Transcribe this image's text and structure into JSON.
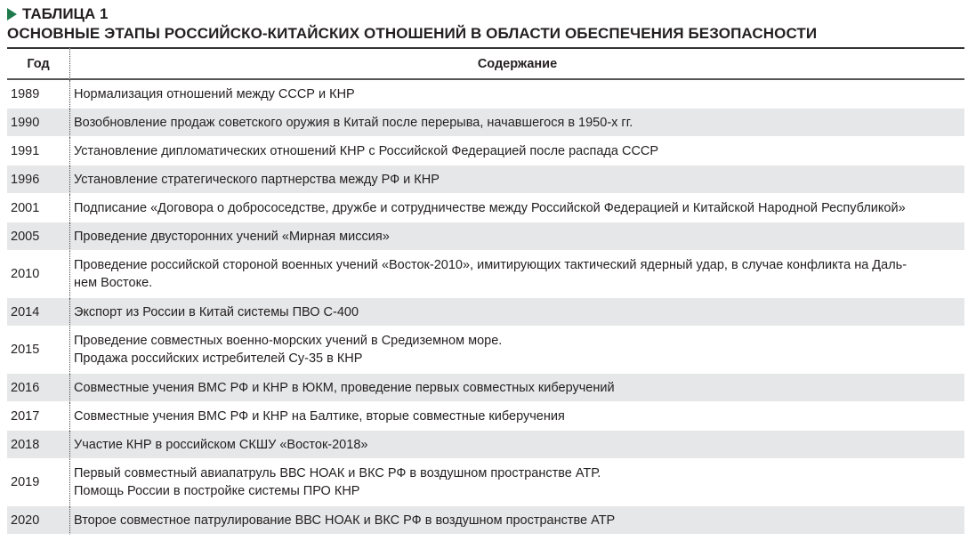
{
  "caption": {
    "label": "ТАБЛИЦА 1",
    "title": "ОСНОВНЫЕ ЭТАПЫ РОССИЙСКО-КИТАЙСКИХ ОТНОШЕНИЙ В ОБЛАСТИ ОБЕСПЕЧЕНИЯ БЕЗОПАСНОСТИ",
    "accent": "#1e7a4c"
  },
  "table": {
    "headers": [
      "Год",
      "Содержание"
    ],
    "rows": [
      {
        "year": "1989",
        "lines": [
          "Нормализация отношений между СССР и КНР"
        ]
      },
      {
        "year": "1990",
        "lines": [
          "Возобновление продаж советского оружия в Китай после перерыва, начавшегося в 1950-х гг."
        ]
      },
      {
        "year": "1991",
        "lines": [
          "Установление дипломатических отношений КНР с Российской Федерацией после распада СССР"
        ]
      },
      {
        "year": "1996",
        "lines": [
          "Установление стратегического партнерства между РФ и КНР"
        ]
      },
      {
        "year": "2001",
        "lines": [
          "Подписание «Договора о добрососедстве, дружбе и сотрудничестве между Российской Федерацией и Китайской Народной Республикой»"
        ]
      },
      {
        "year": "2005",
        "lines": [
          "Проведение двусторонних учений «Мирная миссия»"
        ]
      },
      {
        "year": "2010",
        "lines": [
          "Проведение российской стороной военных учений «Восток-2010», имитирующих тактический ядерный удар, в случае конфликта на Даль-",
          "нем Востоке."
        ]
      },
      {
        "year": "2014",
        "lines": [
          "Экспорт из России в Китай системы ПВО С-400"
        ]
      },
      {
        "year": "2015",
        "lines": [
          "Проведение совместных военно-морских учений в Средиземном море.",
          "Продажа российских истребителей Су-35 в КНР"
        ]
      },
      {
        "year": "2016",
        "lines": [
          "Совместные учения ВМС РФ и КНР в ЮКМ, проведение первых совместных киберучений"
        ]
      },
      {
        "year": "2017",
        "lines": [
          "Совместные учения ВМС РФ и КНР на Балтике, вторые совместные киберучения"
        ]
      },
      {
        "year": "2018",
        "lines": [
          "Участие КНР в российском СКШУ «Восток-2018»"
        ]
      },
      {
        "year": "2019",
        "lines": [
          "Первый совместный авиапатруль ВВС НОАК и ВКС РФ в воздушном пространстве АТР.",
          "Помощь России в постройке системы ПРО КНР"
        ]
      },
      {
        "year": "2020",
        "lines": [
          "Второе совместное патрулирование ВВС НОАК и ВКС РФ в воздушном пространстве АТР"
        ]
      }
    ]
  }
}
